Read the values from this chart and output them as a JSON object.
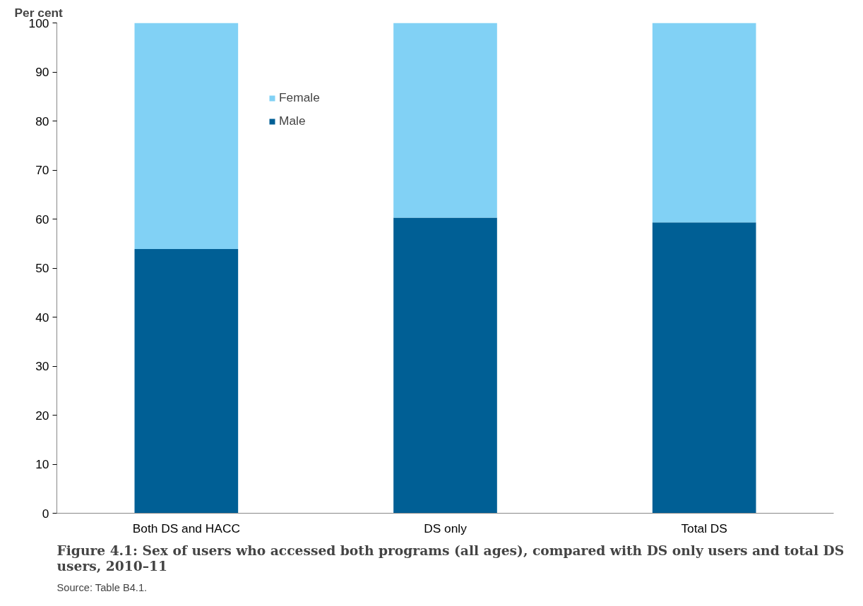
{
  "chart_data": {
    "type": "bar",
    "stacked": true,
    "title": "Figure 4.1: Sex of users who accessed both programs (all ages), compared with DS only users and total DS users, 2010–11",
    "ylabel": "Per cent",
    "annotations": [
      "Source: Table B4.1."
    ],
    "categories": [
      "Both DS and HACC",
      "DS only",
      "Total DS"
    ],
    "series": [
      {
        "name": "Male",
        "color": "#005f95",
        "values": [
          53.9,
          60.3,
          59.3
        ]
      },
      {
        "name": "Female",
        "color": "#81d1f5",
        "values": [
          46.1,
          39.7,
          40.7
        ]
      }
    ],
    "ylim": [
      0,
      100
    ],
    "yticks": [
      0,
      10,
      20,
      30,
      40,
      50,
      60,
      70,
      80,
      90,
      100
    ],
    "grid": false,
    "legend": "top left"
  }
}
